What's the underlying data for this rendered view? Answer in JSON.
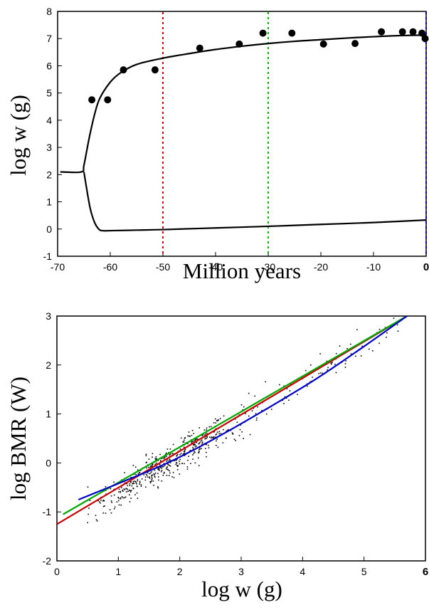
{
  "chart_data": [
    {
      "type": "line",
      "title": "",
      "xlabel": "Million years",
      "ylabel": "log w (g)",
      "xlim": [
        -70,
        0
      ],
      "ylim": [
        -1,
        8
      ],
      "xticks": [
        -70,
        -60,
        -50,
        -40,
        -30,
        -20,
        -10,
        0
      ],
      "yticks": [
        -1,
        0,
        1,
        2,
        3,
        4,
        5,
        6,
        7,
        8
      ],
      "grid": false,
      "series": [
        {
          "kind": "line",
          "color": "#000000",
          "x": [
            -69.5,
            -65.5,
            -65,
            -64,
            -63,
            -62,
            -60,
            -58,
            -55,
            -50,
            -45,
            -40,
            -35,
            -30,
            -25,
            -20,
            -15,
            -10,
            -5,
            0
          ],
          "y": [
            2.1,
            2.1,
            2.35,
            3.35,
            4.2,
            4.8,
            5.4,
            5.75,
            6.05,
            6.28,
            6.45,
            6.6,
            6.72,
            6.82,
            6.9,
            6.96,
            7.02,
            7.07,
            7.11,
            7.13
          ]
        },
        {
          "kind": "line",
          "color": "#000000",
          "x": [
            -65,
            -64.5,
            -63.8,
            -63,
            -62.2,
            -61.5,
            -60,
            -55,
            -50,
            -40,
            -30,
            -20,
            -10,
            0
          ],
          "y": [
            2.1,
            1.5,
            0.75,
            0.25,
            0.0,
            -0.06,
            -0.06,
            -0.04,
            -0.02,
            0.04,
            0.1,
            0.17,
            0.24,
            0.33
          ]
        },
        {
          "kind": "scatter",
          "color": "#000000",
          "x": [
            -63.5,
            -60.5,
            -57.5,
            -51.5,
            -43,
            -35.5,
            -31,
            -25.5,
            -19.5,
            -13.5,
            -8.5,
            -4.5,
            -2.5,
            -0.8,
            -0.2
          ],
          "y": [
            4.75,
            4.75,
            5.85,
            5.85,
            6.65,
            6.8,
            7.2,
            7.2,
            6.8,
            6.82,
            7.25,
            7.25,
            7.25,
            7.2,
            7.0
          ]
        }
      ],
      "vlines": [
        {
          "x": -50,
          "color": "#dd0000"
        },
        {
          "x": -30,
          "color": "#00bb00"
        },
        {
          "x": 0,
          "color": "#0000cc"
        }
      ]
    },
    {
      "type": "scatter",
      "title": "",
      "xlabel": "log w (g)",
      "ylabel": "log BMR (W)",
      "xlim": [
        0,
        6
      ],
      "ylim": [
        -2,
        3
      ],
      "xticks": [
        0,
        1,
        2,
        3,
        4,
        5,
        6
      ],
      "yticks": [
        -2,
        -1,
        0,
        1,
        2,
        3
      ],
      "grid": false,
      "scatter": {
        "color": "#000000",
        "n_points": 560,
        "trend": {
          "slope": 0.745,
          "intercept": -1.33
        },
        "x_range": [
          0.5,
          5.6
        ],
        "residual_sd": 0.17
      },
      "fit_lines": [
        {
          "color": "#cc0000",
          "x": [
            0.0,
            5.7
          ],
          "y": [
            -1.25,
            3.0
          ]
        },
        {
          "color": "#00aa00",
          "x": [
            0.1,
            5.7
          ],
          "y": [
            -1.05,
            3.0
          ]
        },
        {
          "color": "#0000cc",
          "x": [
            0.35,
            1.0,
            1.8,
            2.5,
            3.3,
            4.2,
            5.0,
            5.7
          ],
          "y": [
            -0.75,
            -0.42,
            0.0,
            0.45,
            1.02,
            1.7,
            2.38,
            3.0
          ]
        }
      ]
    }
  ]
}
